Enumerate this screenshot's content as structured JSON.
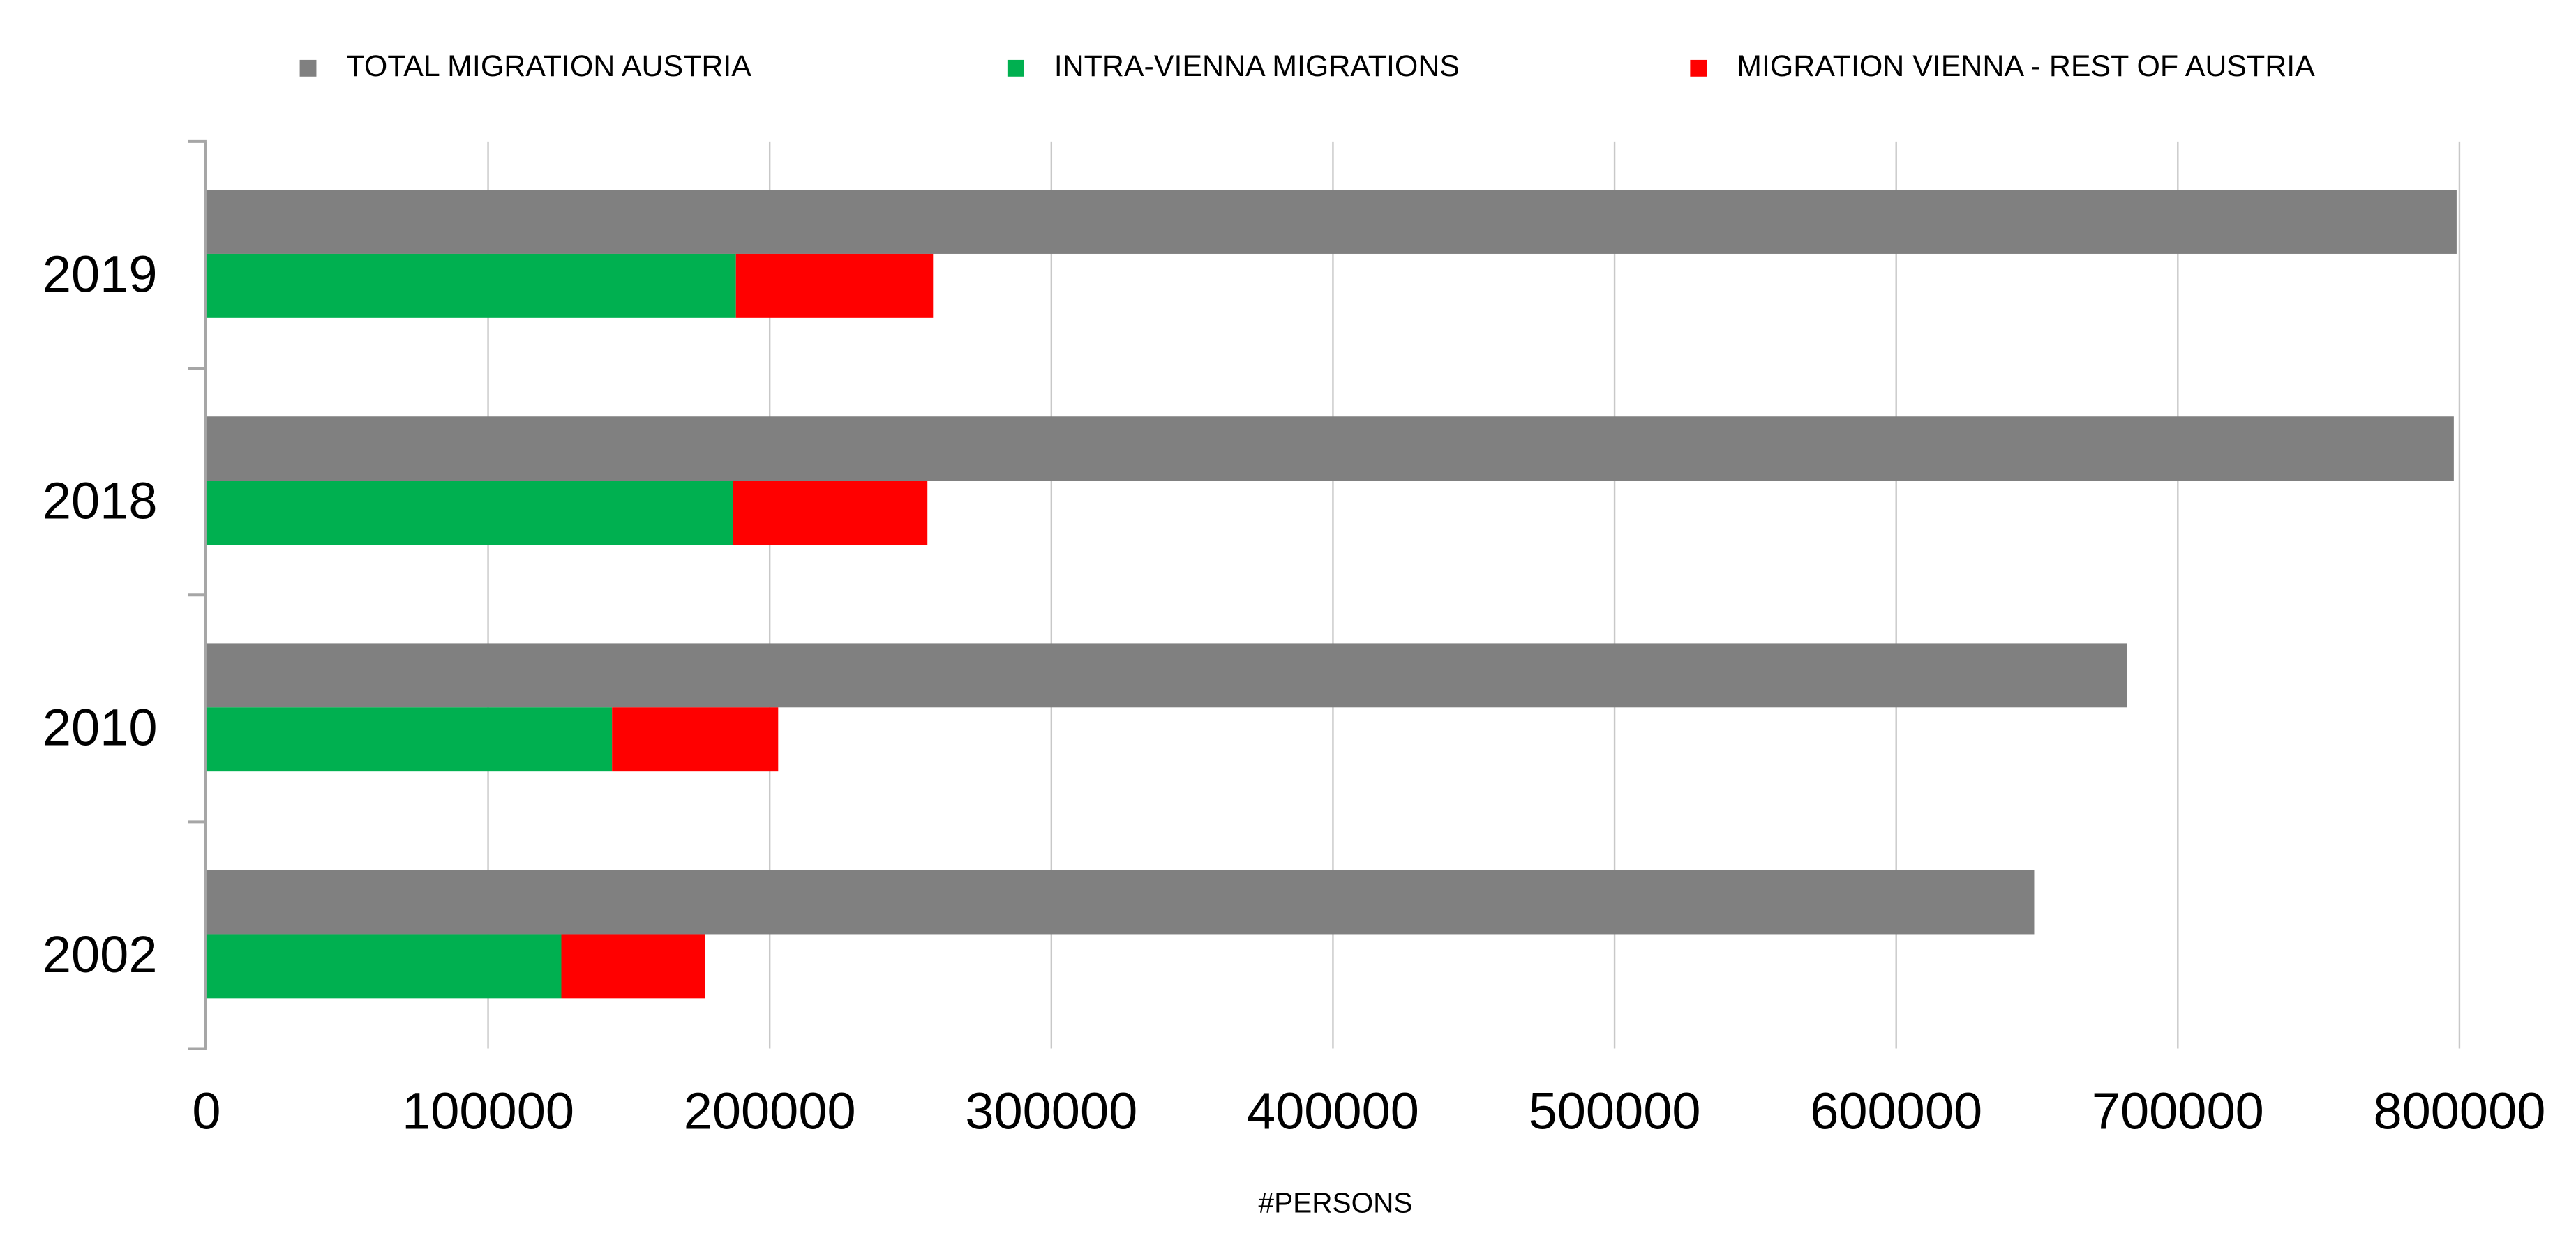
{
  "chart_data": {
    "type": "bar",
    "orientation": "horizontal",
    "categories": [
      "2019",
      "2018",
      "2010",
      "2002"
    ],
    "series": [
      {
        "name": "TOTAL MIGRATION AUSTRIA",
        "color": "#808080",
        "values": [
          799000,
          798000,
          682000,
          649000
        ]
      },
      {
        "name": "INTRA-VIENNA MIGRATIONS",
        "color": "#00b050",
        "values": [
          188000,
          187000,
          144000,
          126000
        ]
      },
      {
        "name": "MIGRATION VIENNA - REST OF AUSTRIA",
        "color": "#ff0000",
        "values": [
          70000,
          69000,
          59000,
          51000
        ]
      }
    ],
    "x_label": "#PERSONS",
    "xlim": [
      0,
      800000
    ],
    "xticks": [
      0,
      100000,
      200000,
      300000,
      400000,
      500000,
      600000,
      700000,
      800000
    ],
    "grid": true,
    "legend": "top"
  }
}
